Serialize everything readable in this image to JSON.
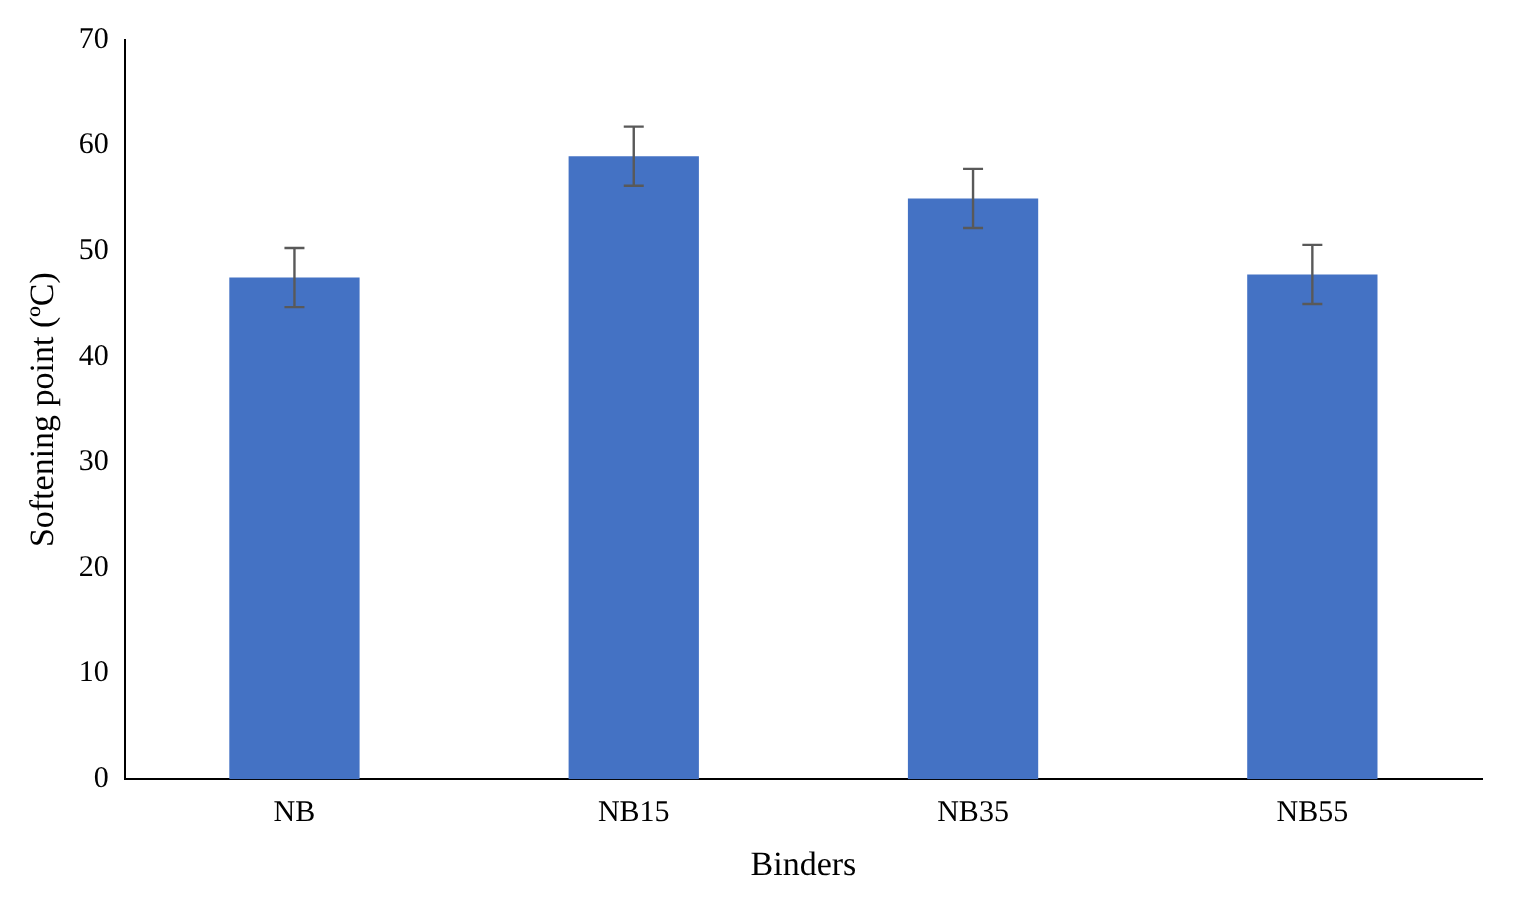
{
  "chart_data": {
    "type": "bar",
    "xlabel": "Binders",
    "ylabel": "Softening point (ºC)",
    "categories": [
      "NB",
      "NB15",
      "NB35",
      "NB55"
    ],
    "values": [
      47.5,
      59,
      55,
      47.8
    ],
    "errors": [
      2.8,
      2.8,
      2.8,
      2.8
    ],
    "color": "#4472c4",
    "ylim": [
      0,
      70
    ],
    "yticks": [
      0,
      10,
      20,
      30,
      40,
      50,
      60,
      70
    ],
    "grid": false,
    "legend": false
  }
}
